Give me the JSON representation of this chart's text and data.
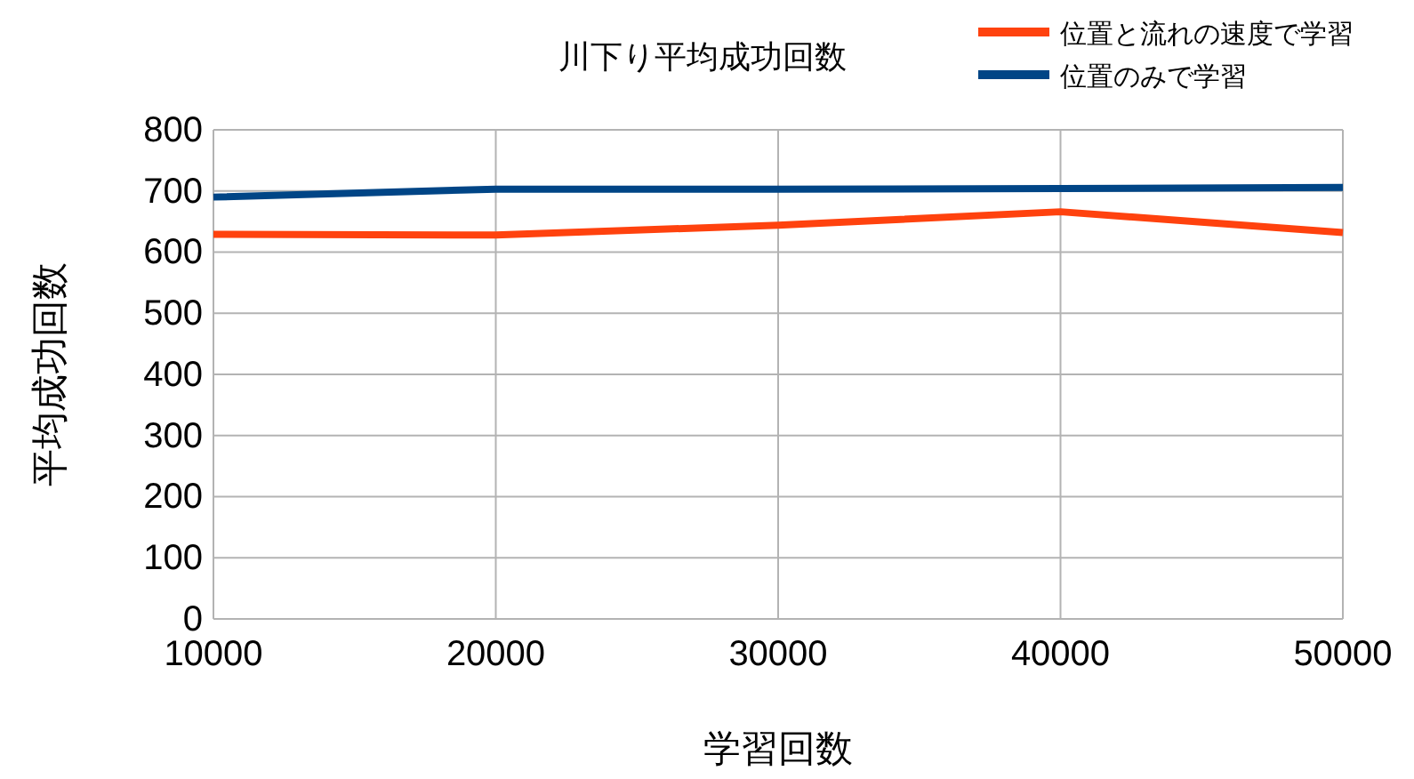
{
  "chart_data": {
    "type": "line",
    "title": "川下り平均成功回数",
    "xlabel": "学習回数",
    "ylabel": "平均成功回数",
    "x": [
      10000,
      20000,
      30000,
      40000,
      50000
    ],
    "series": [
      {
        "name": "位置と流れの速度で学習",
        "color": "#ff420e",
        "values": [
          629,
          628,
          644,
          666,
          632
        ]
      },
      {
        "name": "位置のみで学習",
        "color": "#004586",
        "values": [
          690,
          703,
          703,
          704,
          706
        ]
      }
    ],
    "xlim": [
      10000,
      50000
    ],
    "xticks": [
      10000,
      20000,
      30000,
      40000,
      50000
    ],
    "ylim": [
      0,
      800
    ],
    "yticks": [
      0,
      100,
      200,
      300,
      400,
      500,
      600,
      700,
      800
    ],
    "grid": true,
    "legend": "top right",
    "marker": "none",
    "line_style": "solid"
  }
}
